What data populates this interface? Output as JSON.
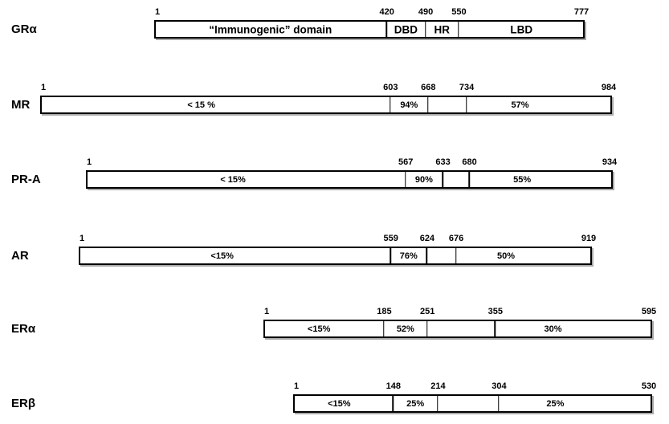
{
  "figure": {
    "type": "protein-domain-homology-diagram",
    "reference_receptor": "GRα",
    "colors": {
      "background": "#ffffff",
      "bar_fill": "#ffffff",
      "bar_border": "#000000",
      "text": "#000000",
      "shadow": "#aaaaaa"
    }
  },
  "receptors": [
    {
      "label": "GRα",
      "length": 777,
      "markers": [
        "1",
        "420",
        "490",
        "550",
        "777"
      ],
      "sections": [
        {
          "start": 1,
          "end": 420,
          "label": "“Immunogenic” domain"
        },
        {
          "start": 420,
          "end": 490,
          "label": "DBD"
        },
        {
          "start": 490,
          "end": 550,
          "label": "HR"
        },
        {
          "start": 550,
          "end": 777,
          "label": "LBD"
        }
      ]
    },
    {
      "label": "MR",
      "length": 984,
      "markers": [
        "1",
        "603",
        "668",
        "734",
        "984"
      ],
      "sections": [
        {
          "start": 1,
          "end": 603,
          "label": "< 15 %"
        },
        {
          "start": 603,
          "end": 668,
          "label": "94%"
        },
        {
          "start": 668,
          "end": 734,
          "label": ""
        },
        {
          "start": 734,
          "end": 984,
          "label": "57%"
        }
      ]
    },
    {
      "label": "PR-A",
      "length": 934,
      "markers": [
        "1",
        "567",
        "633",
        "680",
        "934"
      ],
      "sections": [
        {
          "start": 1,
          "end": 567,
          "label": "< 15%"
        },
        {
          "start": 567,
          "end": 633,
          "label": "90%"
        },
        {
          "start": 633,
          "end": 680,
          "label": ""
        },
        {
          "start": 680,
          "end": 934,
          "label": "55%"
        }
      ]
    },
    {
      "label": "AR",
      "length": 919,
      "markers": [
        "1",
        "559",
        "624",
        "676",
        "919"
      ],
      "sections": [
        {
          "start": 1,
          "end": 559,
          "label": "<15%"
        },
        {
          "start": 559,
          "end": 624,
          "label": "76%"
        },
        {
          "start": 624,
          "end": 676,
          "label": ""
        },
        {
          "start": 676,
          "end": 919,
          "label": "50%"
        }
      ]
    },
    {
      "label": "ERα",
      "length": 595,
      "markers": [
        "1",
        "185",
        "251",
        "355",
        "595"
      ],
      "sections": [
        {
          "start": 1,
          "end": 185,
          "label": "<15%"
        },
        {
          "start": 185,
          "end": 251,
          "label": "52%"
        },
        {
          "start": 251,
          "end": 355,
          "label": ""
        },
        {
          "start": 355,
          "end": 595,
          "label": "30%"
        }
      ]
    },
    {
      "label": "ERβ",
      "length": 530,
      "markers": [
        "1",
        "148",
        "214",
        "304",
        "530"
      ],
      "sections": [
        {
          "start": 1,
          "end": 148,
          "label": "<15%"
        },
        {
          "start": 148,
          "end": 214,
          "label": "25%"
        },
        {
          "start": 214,
          "end": 304,
          "label": ""
        },
        {
          "start": 304,
          "end": 530,
          "label": "25%"
        }
      ]
    }
  ]
}
